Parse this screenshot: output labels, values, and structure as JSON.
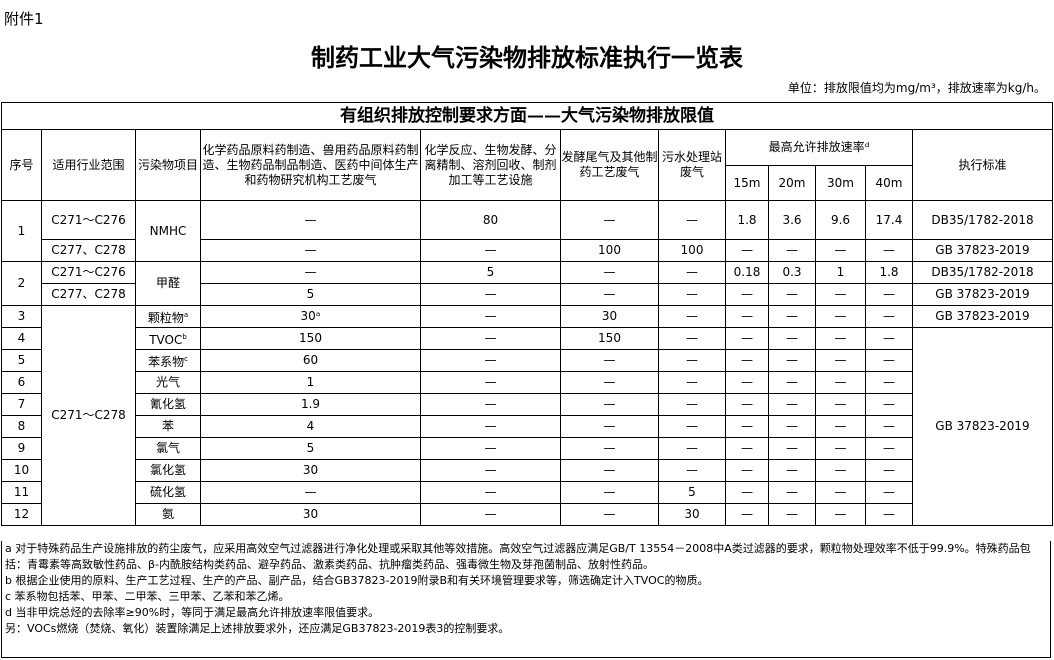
{
  "attachment": "附件1",
  "title": "制药工业大气污染物排放标准执行一览表",
  "unit": "单位：排放限值均为mg/m³，排放速率为kg/h。",
  "caption": "有组织排放控制要求方面——大气污染物排放限值",
  "headers": {
    "no": "序号",
    "industry": "适用行业范围",
    "pollutant": "污染物项目",
    "c1": "化学药品原料药制造、兽用药品原料药制造、生物药品制品制造、医药中间体生产和药物研究机构工艺废气",
    "c2": "化学反应、生物发酵、分离精制、溶剂回收、制剂加工等工艺设施",
    "c3": "发酵尾气及其他制药工艺废气",
    "c4": "污水处理站废气",
    "rate": "最高允许排放速率ᵈ",
    "h15": "15m",
    "h20": "20m",
    "h30": "30m",
    "h40": "40m",
    "std": "执行标准"
  },
  "rows": [
    {
      "no": "1",
      "pollutant": "NMHC",
      "sub": [
        {
          "industry": "C271～C276",
          "v": [
            "—",
            "80",
            "—",
            "—",
            "1.8",
            "3.6",
            "9.6",
            "17.4"
          ],
          "std": "DB35/1782-2018"
        },
        {
          "industry": "C277、C278",
          "v": [
            "—",
            "—",
            "100",
            "100",
            "—",
            "—",
            "—",
            "—"
          ],
          "std": "GB 37823-2019"
        }
      ]
    },
    {
      "no": "2",
      "pollutant": "甲醛",
      "sub": [
        {
          "industry": "C271～C276",
          "v": [
            "—",
            "5",
            "—",
            "—",
            "0.18",
            "0.3",
            "1",
            "1.8"
          ],
          "std": "DB35/1782-2018"
        },
        {
          "industry": "C277、C278",
          "v": [
            "5",
            "—",
            "—",
            "—",
            "—",
            "—",
            "—",
            "—"
          ],
          "std": "GB 37823-2019"
        }
      ]
    }
  ],
  "common_industry": "C271～C278",
  "row3_std": "GB 37823-2019",
  "common_std": "GB 37823-2019",
  "simple": [
    {
      "no": "3",
      "pollutant": "颗粒物",
      "sup": "a",
      "v": [
        "30ᵃ",
        "—",
        "30",
        "—",
        "—",
        "—",
        "—",
        "—"
      ]
    },
    {
      "no": "4",
      "pollutant": "TVOC",
      "sup": "b",
      "v": [
        "150",
        "—",
        "150",
        "—",
        "—",
        "—",
        "—",
        "—"
      ]
    },
    {
      "no": "5",
      "pollutant": "苯系物",
      "sup": "c",
      "v": [
        "60",
        "—",
        "—",
        "—",
        "—",
        "—",
        "—",
        "—"
      ]
    },
    {
      "no": "6",
      "pollutant": "光气",
      "v": [
        "1",
        "—",
        "—",
        "—",
        "—",
        "—",
        "—",
        "—"
      ]
    },
    {
      "no": "7",
      "pollutant": "氰化氢",
      "v": [
        "1.9",
        "—",
        "—",
        "—",
        "—",
        "—",
        "—",
        "—"
      ]
    },
    {
      "no": "8",
      "pollutant": "苯",
      "v": [
        "4",
        "—",
        "—",
        "—",
        "—",
        "—",
        "—",
        "—"
      ]
    },
    {
      "no": "9",
      "pollutant": "氯气",
      "v": [
        "5",
        "—",
        "—",
        "—",
        "—",
        "—",
        "—",
        "—"
      ]
    },
    {
      "no": "10",
      "pollutant": "氯化氢",
      "v": [
        "30",
        "—",
        "—",
        "—",
        "—",
        "—",
        "—",
        "—"
      ]
    },
    {
      "no": "11",
      "pollutant": "硫化氢",
      "v": [
        "—",
        "—",
        "—",
        "5",
        "—",
        "—",
        "—",
        "—"
      ]
    },
    {
      "no": "12",
      "pollutant": "氨",
      "v": [
        "30",
        "—",
        "—",
        "30",
        "—",
        "—",
        "—",
        "—"
      ]
    }
  ],
  "notes": [
    "a 对于特殊药品生产设施排放的药尘废气，应采用高效空气过滤器进行净化处理或采取其他等效措施。高效空气过滤器应满足GB/T 13554－2008中A类过滤器的要求，颗粒物处理效率不低于99.9%。特殊药品包括：青霉素等高致敏性药品、β-内酰胺结构类药品、避孕药品、激素类药品、抗肿瘤类药品、强毒微生物及芽孢菌制品、放射性药品。",
    "b 根据企业使用的原料、生产工艺过程、生产的产品、副产品，结合GB37823-2019附录B和有关环境管理要求等，筛选确定计入TVOC的物质。",
    "c 苯系物包括苯、甲苯、二甲苯、三甲苯、乙苯和苯乙烯。",
    "d 当非甲烷总烃的去除率≥90%时，等同于满足最高允许排放速率限值要求。",
    "另：VOCs燃烧（焚烧、氧化）装置除满足上述排放要求外，还应满足GB37823-2019表3的控制要求。"
  ]
}
